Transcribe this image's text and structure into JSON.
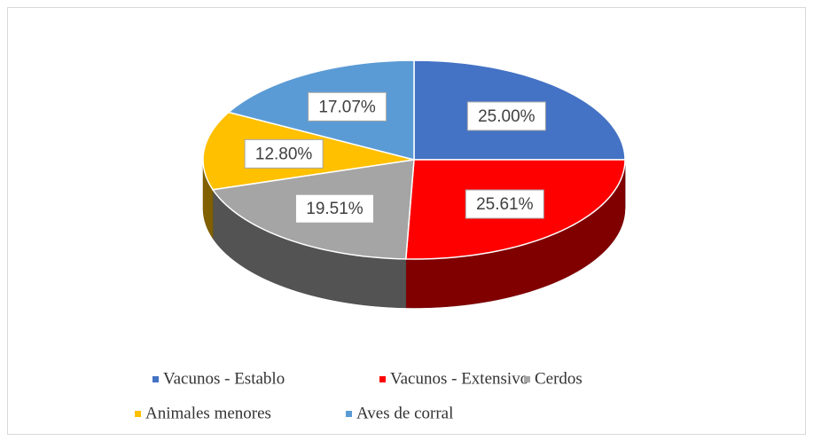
{
  "chart_data": {
    "type": "pie",
    "categories": [
      "Vacunos - Establo",
      "Vacunos - Extensivo",
      "Cerdos",
      "Animales menores",
      "Aves de corral"
    ],
    "values": [
      25.0,
      25.61,
      19.51,
      12.8,
      17.07
    ],
    "value_labels": [
      "25.00%",
      "25.61%",
      "19.51%",
      "12.80%",
      "17.07%"
    ],
    "colors": [
      "#4472c4",
      "#ff0000",
      "#a5a5a5",
      "#ffc000",
      "#5b9bd5"
    ],
    "legend": "bottom"
  }
}
